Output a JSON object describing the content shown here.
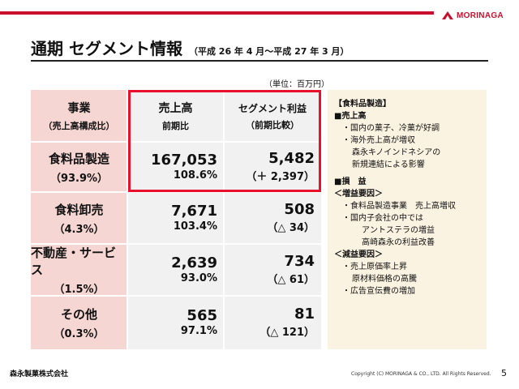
{
  "brand": {
    "logo_text": "MORINAGA",
    "color": "#c8102e"
  },
  "title": "通期 セグメント情報",
  "subtitle": "（平成 26 年 4 月～平成 27 年 3 月）",
  "unit": "（単位：百万円）",
  "table": {
    "header": {
      "col0_main": "事業",
      "col0_sub": "（売上高構成比）",
      "col1_main": "売上高",
      "col1_sub": "前期比",
      "col2_main": "セグメント利益",
      "col2_sub": "（前期比較）"
    },
    "rows": [
      {
        "name": "食料品製造",
        "share": "（93.9%）",
        "sales": "167,053",
        "sales_yoy": "108.6%",
        "profit": "5,482",
        "profit_yoy": "（＋ 2,397）"
      },
      {
        "name": "食料卸売",
        "share": "（4.3%）",
        "sales": "7,671",
        "sales_yoy": "103.4%",
        "profit": "508",
        "profit_yoy": "（△ 34）"
      },
      {
        "name": "不動産・サービス",
        "share": "（1.5%）",
        "sales": "2,639",
        "sales_yoy": "93.0%",
        "profit": "734",
        "profit_yoy": "（△ 61）"
      },
      {
        "name": "その他",
        "share": "（0.3%）",
        "sales": "565",
        "sales_yoy": "97.1%",
        "profit": "81",
        "profit_yoy": "（△ 121）"
      }
    ]
  },
  "notes": {
    "heading": "【食料品製造】",
    "sales_head": "■売上高",
    "sales_1": "・国内の菓子、冷菓が好調",
    "sales_2": "・海外売上高が増収",
    "sales_2b": "森永キノインドネシアの",
    "sales_2c": "新規連結による影響",
    "profit_head": "■損　益",
    "inc_head": "＜増益要因＞",
    "inc_1": "・食料品製造事業　売上高増収",
    "inc_2": "・国内子会社の中では",
    "inc_2b": "アントステラの増益",
    "inc_2c": "高崎森永の利益改善",
    "dec_head": "＜減益要因＞",
    "dec_1": "・売上原価率上昇",
    "dec_1b": "原材料価格の高騰",
    "dec_2": "・広告宣伝費の増加"
  },
  "footer": {
    "company": "森永製菓株式会社",
    "copyright": "Copyright (C) MORINAGA & CO., LTD. All Rights Reserved.",
    "page": "5"
  }
}
